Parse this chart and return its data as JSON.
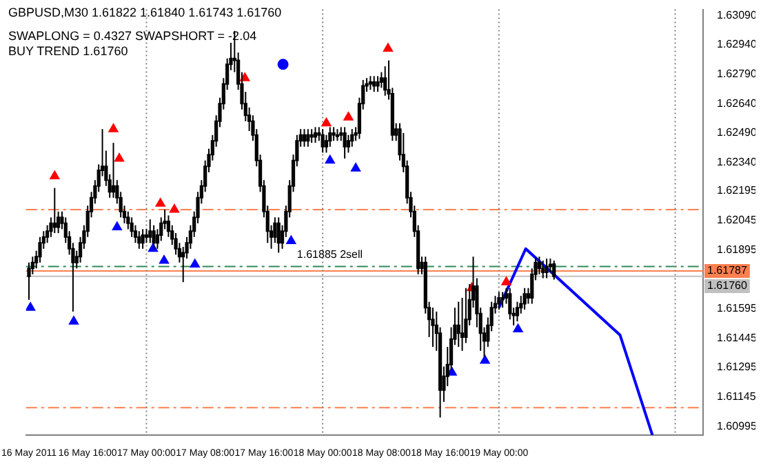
{
  "chart_data": {
    "type": "candlestick",
    "title": "GBPUSD,M30  1.61822 1.61840 1.61743 1.61760",
    "annotations": [
      "SWAPLONG = 0.4327   SWAPSHORT = -2.04",
      "BUY TREND 1.61760",
      {
        "text": "1.61885 2sell",
        "x": "2011-05-17T20:30",
        "y": 1.6184
      }
    ],
    "color": "#000000",
    "x": [
      "2011-05-16T08:00",
      "2011-05-16T08:30",
      "2011-05-16T09:00",
      "2011-05-16T09:30",
      "2011-05-16T10:00",
      "2011-05-16T10:30",
      "2011-05-16T11:00",
      "2011-05-16T11:30",
      "2011-05-16T12:00",
      "2011-05-16T12:30",
      "2011-05-16T13:00",
      "2011-05-16T13:30",
      "2011-05-16T14:00",
      "2011-05-16T14:30",
      "2011-05-16T15:00",
      "2011-05-16T15:30",
      "2011-05-16T16:00",
      "2011-05-16T16:30",
      "2011-05-16T17:00",
      "2011-05-16T17:30",
      "2011-05-16T18:00",
      "2011-05-16T18:30",
      "2011-05-16T19:00",
      "2011-05-16T19:30",
      "2011-05-16T20:00",
      "2011-05-16T20:30",
      "2011-05-16T21:00",
      "2011-05-16T21:30",
      "2011-05-16T22:00",
      "2011-05-16T22:30",
      "2011-05-16T23:00",
      "2011-05-16T23:30",
      "2011-05-17T00:00",
      "2011-05-17T00:30",
      "2011-05-17T01:00",
      "2011-05-17T01:30",
      "2011-05-17T02:00",
      "2011-05-17T02:30",
      "2011-05-17T03:00",
      "2011-05-17T03:30",
      "2011-05-17T04:00",
      "2011-05-17T04:30",
      "2011-05-17T05:00",
      "2011-05-17T05:30",
      "2011-05-17T06:00",
      "2011-05-17T06:30",
      "2011-05-17T07:00",
      "2011-05-17T07:30",
      "2011-05-17T08:00",
      "2011-05-17T08:30",
      "2011-05-17T09:00",
      "2011-05-17T09:30",
      "2011-05-17T10:00",
      "2011-05-17T10:30",
      "2011-05-17T11:00",
      "2011-05-17T11:30",
      "2011-05-17T12:00",
      "2011-05-17T12:30",
      "2011-05-17T13:00",
      "2011-05-17T13:30",
      "2011-05-17T14:00",
      "2011-05-17T14:30",
      "2011-05-17T15:00",
      "2011-05-17T15:30",
      "2011-05-17T16:00",
      "2011-05-17T16:30",
      "2011-05-17T17:00",
      "2011-05-17T17:30",
      "2011-05-17T18:00",
      "2011-05-17T18:30",
      "2011-05-17T19:00",
      "2011-05-17T19:30",
      "2011-05-17T20:00",
      "2011-05-17T20:30",
      "2011-05-17T21:00",
      "2011-05-17T21:30",
      "2011-05-17T22:00",
      "2011-05-17T22:30",
      "2011-05-17T23:00",
      "2011-05-17T23:30",
      "2011-05-18T00:00",
      "2011-05-18T00:30",
      "2011-05-18T01:00",
      "2011-05-18T01:30",
      "2011-05-18T02:00",
      "2011-05-18T02:30",
      "2011-05-18T03:00",
      "2011-05-18T03:30",
      "2011-05-18T04:00",
      "2011-05-18T04:30",
      "2011-05-18T05:00",
      "2011-05-18T05:30",
      "2011-05-18T06:00",
      "2011-05-18T06:30",
      "2011-05-18T07:00",
      "2011-05-18T07:30",
      "2011-05-18T08:00",
      "2011-05-18T08:30",
      "2011-05-18T09:00",
      "2011-05-18T09:30",
      "2011-05-18T10:00",
      "2011-05-18T10:30",
      "2011-05-18T11:00",
      "2011-05-18T11:30",
      "2011-05-18T12:00",
      "2011-05-18T12:30",
      "2011-05-18T13:00",
      "2011-05-18T13:30",
      "2011-05-18T14:00",
      "2011-05-18T14:30",
      "2011-05-18T15:00",
      "2011-05-18T15:30",
      "2011-05-18T16:00",
      "2011-05-18T16:30",
      "2011-05-18T17:00",
      "2011-05-18T17:30",
      "2011-05-18T18:00",
      "2011-05-18T18:30",
      "2011-05-18T19:00",
      "2011-05-18T19:30",
      "2011-05-18T20:00",
      "2011-05-18T20:30",
      "2011-05-18T21:00",
      "2011-05-18T21:30",
      "2011-05-18T22:00",
      "2011-05-18T22:30",
      "2011-05-18T23:00",
      "2011-05-18T23:30",
      "2011-05-19T00:00",
      "2011-05-19T00:30",
      "2011-05-19T01:00",
      "2011-05-19T01:30",
      "2011-05-19T02:00",
      "2011-05-19T02:30",
      "2011-05-19T03:00",
      "2011-05-19T03:30",
      "2011-05-19T04:00",
      "2011-05-19T04:30",
      "2011-05-19T05:00",
      "2011-05-19T05:30",
      "2011-05-19T06:00",
      "2011-05-19T06:30",
      "2011-05-19T07:00",
      "2011-05-19T07:30"
    ],
    "ohlc": [
      [
        1.6176,
        1.6183,
        1.6164,
        1.618
      ],
      [
        1.618,
        1.6186,
        1.6177,
        1.6183
      ],
      [
        1.6183,
        1.6189,
        1.618,
        1.6186
      ],
      [
        1.6186,
        1.6196,
        1.6183,
        1.6193
      ],
      [
        1.6193,
        1.6199,
        1.619,
        1.6196
      ],
      [
        1.6196,
        1.6202,
        1.6193,
        1.6199
      ],
      [
        1.6199,
        1.6206,
        1.6196,
        1.6203
      ],
      [
        1.6203,
        1.6221,
        1.6198,
        1.6201
      ],
      [
        1.6201,
        1.6209,
        1.6198,
        1.6206
      ],
      [
        1.6206,
        1.6209,
        1.62,
        1.6203
      ],
      [
        1.6203,
        1.6206,
        1.6193,
        1.6196
      ],
      [
        1.6196,
        1.6199,
        1.6187,
        1.619
      ],
      [
        1.619,
        1.6193,
        1.6158,
        1.6183
      ],
      [
        1.6183,
        1.6189,
        1.618,
        1.6186
      ],
      [
        1.6186,
        1.6196,
        1.6183,
        1.6193
      ],
      [
        1.6193,
        1.6202,
        1.619,
        1.6199
      ],
      [
        1.6199,
        1.6212,
        1.6196,
        1.6209
      ],
      [
        1.6209,
        1.6219,
        1.6206,
        1.6216
      ],
      [
        1.6216,
        1.6225,
        1.6213,
        1.6222
      ],
      [
        1.6222,
        1.6233,
        1.6219,
        1.623
      ],
      [
        1.623,
        1.6251,
        1.6227,
        1.6232
      ],
      [
        1.6232,
        1.624,
        1.6222,
        1.6225
      ],
      [
        1.6225,
        1.6228,
        1.6216,
        1.6219
      ],
      [
        1.6219,
        1.6244,
        1.6216,
        1.6222
      ],
      [
        1.6222,
        1.6225,
        1.6213,
        1.6216
      ],
      [
        1.6216,
        1.6219,
        1.6206,
        1.6209
      ],
      [
        1.6209,
        1.6212,
        1.6203,
        1.6206
      ],
      [
        1.6206,
        1.6209,
        1.62,
        1.6203
      ],
      [
        1.6203,
        1.6206,
        1.6196,
        1.6199
      ],
      [
        1.6199,
        1.6202,
        1.6193,
        1.6196
      ],
      [
        1.6196,
        1.6199,
        1.619,
        1.6193
      ],
      [
        1.6193,
        1.62,
        1.619,
        1.6197
      ],
      [
        1.6197,
        1.62,
        1.6193,
        1.6196
      ],
      [
        1.6196,
        1.6205,
        1.6193,
        1.6199
      ],
      [
        1.6199,
        1.6202,
        1.619,
        1.6193
      ],
      [
        1.6193,
        1.62,
        1.619,
        1.6197
      ],
      [
        1.6197,
        1.6206,
        1.6194,
        1.6203
      ],
      [
        1.6203,
        1.621,
        1.62,
        1.6204
      ],
      [
        1.6204,
        1.6207,
        1.6196,
        1.6199
      ],
      [
        1.6199,
        1.6202,
        1.6192,
        1.6195
      ],
      [
        1.6195,
        1.6198,
        1.6187,
        1.619
      ],
      [
        1.619,
        1.6193,
        1.6183,
        1.6186
      ],
      [
        1.6186,
        1.6191,
        1.6173,
        1.6188
      ],
      [
        1.6188,
        1.6196,
        1.6185,
        1.6193
      ],
      [
        1.6193,
        1.6202,
        1.619,
        1.6199
      ],
      [
        1.6199,
        1.6209,
        1.6196,
        1.6206
      ],
      [
        1.6206,
        1.6219,
        1.6203,
        1.6216
      ],
      [
        1.6216,
        1.6225,
        1.6213,
        1.6222
      ],
      [
        1.6222,
        1.6235,
        1.6219,
        1.6232
      ],
      [
        1.6232,
        1.6241,
        1.6229,
        1.6238
      ],
      [
        1.6238,
        1.6248,
        1.6235,
        1.6245
      ],
      [
        1.6245,
        1.6258,
        1.6242,
        1.6255
      ],
      [
        1.6255,
        1.6267,
        1.6252,
        1.6264
      ],
      [
        1.6264,
        1.6277,
        1.6261,
        1.6274
      ],
      [
        1.6274,
        1.6287,
        1.6271,
        1.6284
      ],
      [
        1.6284,
        1.6295,
        1.6281,
        1.6287
      ],
      [
        1.6287,
        1.6301,
        1.628,
        1.6286
      ],
      [
        1.6286,
        1.629,
        1.6271,
        1.6274
      ],
      [
        1.6274,
        1.628,
        1.6261,
        1.6264
      ],
      [
        1.6264,
        1.627,
        1.6255,
        1.6258
      ],
      [
        1.6258,
        1.6262,
        1.625,
        1.6255
      ],
      [
        1.6255,
        1.6258,
        1.6245,
        1.6248
      ],
      [
        1.6248,
        1.6251,
        1.6232,
        1.6235
      ],
      [
        1.6235,
        1.6238,
        1.6219,
        1.6222
      ],
      [
        1.6222,
        1.6225,
        1.6206,
        1.6209
      ],
      [
        1.6209,
        1.6212,
        1.6193,
        1.6199
      ],
      [
        1.6199,
        1.6202,
        1.619,
        1.6196
      ],
      [
        1.6196,
        1.6206,
        1.6193,
        1.6203
      ],
      [
        1.6203,
        1.6206,
        1.6188,
        1.6193
      ],
      [
        1.6193,
        1.6202,
        1.619,
        1.6199
      ],
      [
        1.6199,
        1.6212,
        1.6196,
        1.6209
      ],
      [
        1.6209,
        1.6225,
        1.6206,
        1.6222
      ],
      [
        1.6222,
        1.6238,
        1.6219,
        1.6235
      ],
      [
        1.6235,
        1.6248,
        1.6232,
        1.6245
      ],
      [
        1.6245,
        1.6251,
        1.6242,
        1.6248
      ],
      [
        1.6248,
        1.6251,
        1.6242,
        1.6245
      ],
      [
        1.6245,
        1.6251,
        1.6242,
        1.6248
      ],
      [
        1.6248,
        1.6251,
        1.6244,
        1.6247
      ],
      [
        1.6247,
        1.6252,
        1.6244,
        1.6249
      ],
      [
        1.6249,
        1.6252,
        1.6245,
        1.6248
      ],
      [
        1.6248,
        1.6251,
        1.6239,
        1.6242
      ],
      [
        1.6242,
        1.6248,
        1.6239,
        1.6245
      ],
      [
        1.6245,
        1.6252,
        1.6242,
        1.6249
      ],
      [
        1.6249,
        1.6252,
        1.6245,
        1.6248
      ],
      [
        1.6248,
        1.6251,
        1.6245,
        1.6248
      ],
      [
        1.6248,
        1.6252,
        1.6245,
        1.6249
      ],
      [
        1.6249,
        1.6252,
        1.6236,
        1.6242
      ],
      [
        1.6242,
        1.6248,
        1.6239,
        1.6245
      ],
      [
        1.6245,
        1.6251,
        1.6242,
        1.6248
      ],
      [
        1.6248,
        1.6252,
        1.6245,
        1.6249
      ],
      [
        1.6249,
        1.6267,
        1.6246,
        1.6264
      ],
      [
        1.6264,
        1.6276,
        1.6261,
        1.6273
      ],
      [
        1.6273,
        1.6277,
        1.627,
        1.6274
      ],
      [
        1.6274,
        1.6278,
        1.6271,
        1.6275
      ],
      [
        1.6275,
        1.6278,
        1.627,
        1.6273
      ],
      [
        1.6273,
        1.6278,
        1.627,
        1.6275
      ],
      [
        1.6275,
        1.628,
        1.6272,
        1.6277
      ],
      [
        1.6277,
        1.6283,
        1.6268,
        1.6271
      ],
      [
        1.6271,
        1.6286,
        1.6266,
        1.6269
      ],
      [
        1.6269,
        1.6272,
        1.6245,
        1.6248
      ],
      [
        1.6248,
        1.6254,
        1.6245,
        1.6251
      ],
      [
        1.6251,
        1.6254,
        1.6235,
        1.6238
      ],
      [
        1.6238,
        1.6249,
        1.6229,
        1.6232
      ],
      [
        1.6232,
        1.6235,
        1.6213,
        1.6216
      ],
      [
        1.6216,
        1.6219,
        1.6206,
        1.6209
      ],
      [
        1.6209,
        1.6212,
        1.6196,
        1.6199
      ],
      [
        1.6199,
        1.6202,
        1.6177,
        1.618
      ],
      [
        1.618,
        1.6186,
        1.6177,
        1.6183
      ],
      [
        1.6183,
        1.6186,
        1.6157,
        1.616
      ],
      [
        1.616,
        1.6163,
        1.6145,
        1.6154
      ],
      [
        1.6154,
        1.616,
        1.614,
        1.6151
      ],
      [
        1.6151,
        1.6158,
        1.6138,
        1.6147
      ],
      [
        1.6147,
        1.615,
        1.6104,
        1.6118
      ],
      [
        1.6118,
        1.613,
        1.6112,
        1.6125
      ],
      [
        1.6125,
        1.614,
        1.612,
        1.6131
      ],
      [
        1.6131,
        1.615,
        1.6128,
        1.6144
      ],
      [
        1.6144,
        1.616,
        1.6141,
        1.6151
      ],
      [
        1.6151,
        1.6163,
        1.614,
        1.6147
      ],
      [
        1.6147,
        1.6165,
        1.6138,
        1.6145
      ],
      [
        1.6145,
        1.617,
        1.6142,
        1.6154
      ],
      [
        1.6154,
        1.6172,
        1.6151,
        1.6164
      ],
      [
        1.6164,
        1.6186,
        1.616,
        1.6171
      ],
      [
        1.6171,
        1.6175,
        1.615,
        1.6157
      ],
      [
        1.6157,
        1.616,
        1.6138,
        1.6147
      ],
      [
        1.6147,
        1.615,
        1.6135,
        1.6143
      ],
      [
        1.6143,
        1.6155,
        1.614,
        1.6151
      ],
      [
        1.6151,
        1.6163,
        1.6148,
        1.616
      ],
      [
        1.616,
        1.6166,
        1.6157,
        1.6162
      ],
      [
        1.6162,
        1.6168,
        1.6159,
        1.6165
      ],
      [
        1.6165,
        1.6168,
        1.616,
        1.6165
      ],
      [
        1.6165,
        1.617,
        1.6162,
        1.6167
      ],
      [
        1.6167,
        1.617,
        1.6154,
        1.6157
      ],
      [
        1.6157,
        1.616,
        1.6151,
        1.6156
      ],
      [
        1.6156,
        1.6163,
        1.6153,
        1.616
      ],
      [
        1.616,
        1.6166,
        1.6157,
        1.6162
      ],
      [
        1.6162,
        1.617,
        1.6159,
        1.6167
      ],
      [
        1.6167,
        1.617,
        1.6162,
        1.6165
      ],
      [
        1.6165,
        1.618,
        1.6162,
        1.6177
      ],
      [
        1.6177,
        1.6186,
        1.6174,
        1.6183
      ],
      [
        1.6183,
        1.6186,
        1.6177,
        1.618
      ],
      [
        1.618,
        1.6184,
        1.6175,
        1.6178
      ],
      [
        1.6178,
        1.6185,
        1.6175,
        1.6181
      ],
      [
        1.6181,
        1.6185,
        1.6178,
        1.6182
      ],
      [
        1.61822,
        1.6184,
        1.61743,
        1.6176
      ]
    ],
    "series": [
      {
        "type": "scatter",
        "color": "#ff0000",
        "marker": "triangle",
        "x": [
          "2011-05-16T11:30",
          "2011-05-16T19:30",
          "2011-05-16T20:18",
          "2011-05-17T01:54",
          "2011-05-17T03:48",
          "2011-05-17T13:24",
          "2011-05-18T00:30",
          "2011-05-18T03:30",
          "2011-05-18T08:54",
          "2011-05-18T20:18",
          "2011-05-19T01:00"
        ],
        "values": [
          1.6227,
          1.6251,
          1.6236,
          1.6213,
          1.621,
          1.6277,
          1.6254,
          1.6257,
          1.6292,
          1.617,
          1.6173
        ]
      },
      {
        "type": "scatter",
        "color": "#0000ff",
        "marker": "triangle",
        "x": [
          "2011-05-16T08:12",
          "2011-05-16T14:06",
          "2011-05-16T20:00",
          "2011-05-17T00:54",
          "2011-05-17T02:24",
          "2011-05-17T06:36",
          "2011-05-17T19:42",
          "2011-05-18T01:00",
          "2011-05-18T04:30",
          "2011-05-18T17:36",
          "2011-05-18T22:06",
          "2011-05-19T02:36"
        ],
        "values": [
          1.616,
          1.6153,
          1.6201,
          1.619,
          1.6184,
          1.6182,
          1.6194,
          1.6235,
          1.6231,
          1.6127,
          1.6133,
          1.6149
        ]
      },
      {
        "type": "scatter",
        "color": "#0000ff",
        "marker": "circle",
        "x": [
          "2011-05-17T18:36"
        ],
        "values": [
          1.6284
        ]
      },
      {
        "type": "line",
        "color": "#0000ff",
        "marker": "none",
        "x": [
          "2011-05-19T00:00",
          "2011-05-19T03:39",
          "2011-05-19T16:30",
          "2011-05-19T20:54"
        ],
        "values": [
          1.616,
          1.619,
          1.6146,
          1.6095
        ]
      }
    ],
    "xlim": [
      "2011-05-16T07:36",
      "2011-05-20T03:48"
    ],
    "xticks": [
      {
        "value": "2011-05-16T08:00",
        "label": "16 May 2011"
      },
      {
        "value": "2011-05-16T16:00",
        "label": "16 May 16:00"
      },
      {
        "value": "2011-05-17T00:00",
        "label": "17 May 00:00"
      },
      {
        "value": "2011-05-17T08:00",
        "label": "17 May 08:00"
      },
      {
        "value": "2011-05-17T16:00",
        "label": "17 May 16:00"
      },
      {
        "value": "2011-05-18T00:00",
        "label": "18 May 00:00"
      },
      {
        "value": "2011-05-18T08:00",
        "label": "18 May 08:00"
      },
      {
        "value": "2011-05-18T16:00",
        "label": "18 May 16:00"
      },
      {
        "value": "2011-05-19T00:00",
        "label": "19 May 00:00"
      }
    ],
    "ylim": [
      1.6095,
      1.6312
    ],
    "yticks": [
      {
        "value": 1.6309,
        "label": "1.63090"
      },
      {
        "value": 1.6294,
        "label": "1.62940"
      },
      {
        "value": 1.6279,
        "label": "1.62790"
      },
      {
        "value": 1.6264,
        "label": "1.62640"
      },
      {
        "value": 1.6249,
        "label": "1.62490"
      },
      {
        "value": 1.6234,
        "label": "1.62340"
      },
      {
        "value": 1.62195,
        "label": "1.62195"
      },
      {
        "value": 1.62045,
        "label": "1.62045"
      },
      {
        "value": 1.61895,
        "label": "1.61895"
      },
      {
        "value": 1.61595,
        "label": "1.61595"
      },
      {
        "value": 1.61445,
        "label": "1.61445"
      },
      {
        "value": 1.61295,
        "label": "1.61295"
      },
      {
        "value": 1.61145,
        "label": "1.61145"
      },
      {
        "value": 1.60995,
        "label": "1.60995"
      }
    ],
    "ref_lines": [
      {
        "axis": "y",
        "value": 1.621,
        "color": "#ff7f50",
        "line_style": "dashed"
      },
      {
        "axis": "y",
        "value": 1.6181,
        "color": "#2e8b57",
        "line_style": "dashed"
      },
      {
        "axis": "y",
        "value": 1.61787,
        "label": "1.61787",
        "color": "#ff7f50",
        "line_style": "solid"
      },
      {
        "axis": "y",
        "value": 1.6176,
        "label": "1.61760",
        "color": "#c0c0c0",
        "line_style": "solid"
      },
      {
        "axis": "y",
        "value": 1.6109,
        "color": "#ff7f50",
        "line_style": "dashed"
      },
      {
        "axis": "x",
        "value": "2011-05-17T00:00",
        "color": "#808080",
        "line_style": "dotted"
      },
      {
        "axis": "x",
        "value": "2011-05-18T00:00",
        "color": "#808080",
        "line_style": "dotted"
      },
      {
        "axis": "x",
        "value": "2011-05-19T00:00",
        "color": "#808080",
        "line_style": "dotted"
      },
      {
        "axis": "x",
        "value": "2011-05-20T00:00",
        "color": "#808080",
        "line_style": "dotted"
      }
    ],
    "grid": false,
    "legend": false
  }
}
